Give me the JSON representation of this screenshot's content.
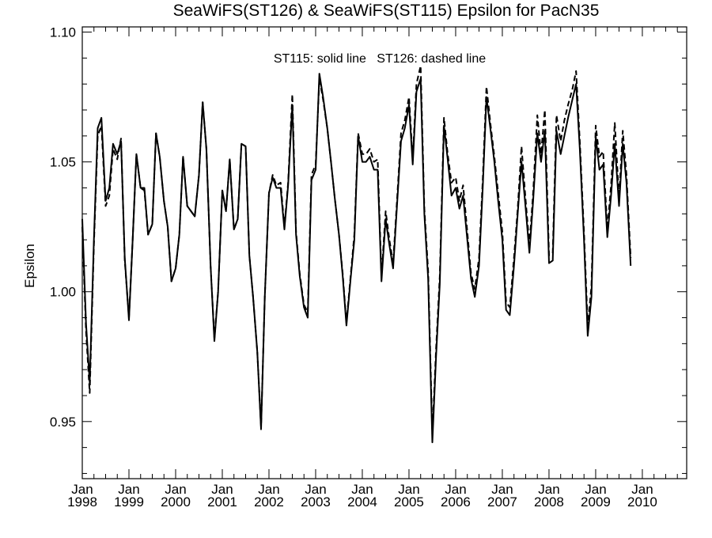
{
  "chart_data": {
    "type": "line",
    "title": "SeaWiFS(ST126) & SeaWiFS(ST115)  Epsilon for PacN35",
    "ylabel": "Epsilon",
    "xlabel": "",
    "legend_text": "ST115: solid line   ST126: dashed line",
    "ylim": [
      0.928,
      1.102
    ],
    "xlim": [
      1998.0,
      2010.95
    ],
    "yticks": [
      {
        "value": 0.95,
        "label": "0.95"
      },
      {
        "value": 1.0,
        "label": "1.00"
      },
      {
        "value": 1.05,
        "label": "1.05"
      },
      {
        "value": 1.1,
        "label": "1.10"
      }
    ],
    "xticks": [
      {
        "value": 1998,
        "month": "Jan",
        "year": "1998"
      },
      {
        "value": 1999,
        "month": "Jan",
        "year": "1999"
      },
      {
        "value": 2000,
        "month": "Jan",
        "year": "2000"
      },
      {
        "value": 2001,
        "month": "Jan",
        "year": "2001"
      },
      {
        "value": 2002,
        "month": "Jan",
        "year": "2002"
      },
      {
        "value": 2003,
        "month": "Jan",
        "year": "2003"
      },
      {
        "value": 2004,
        "month": "Jan",
        "year": "2004"
      },
      {
        "value": 2005,
        "month": "Jan",
        "year": "2005"
      },
      {
        "value": 2006,
        "month": "Jan",
        "year": "2006"
      },
      {
        "value": 2007,
        "month": "Jan",
        "year": "2007"
      },
      {
        "value": 2008,
        "month": "Jan",
        "year": "2008"
      },
      {
        "value": 2009,
        "month": "Jan",
        "year": "2009"
      },
      {
        "value": 2010,
        "month": "Jan",
        "year": "2010"
      }
    ],
    "series": [
      {
        "style": "solid",
        "points": [
          [
            1998.0,
            1.028
          ],
          [
            1998.08,
            0.988
          ],
          [
            1998.16,
            0.965
          ],
          [
            1998.25,
            1.02
          ],
          [
            1998.33,
            1.063
          ],
          [
            1998.41,
            1.067
          ],
          [
            1998.5,
            1.035
          ],
          [
            1998.58,
            1.04
          ],
          [
            1998.66,
            1.057
          ],
          [
            1998.75,
            1.053
          ],
          [
            1998.83,
            1.058
          ],
          [
            1998.91,
            1.013
          ],
          [
            1999.0,
            0.989
          ],
          [
            1999.08,
            1.02
          ],
          [
            1999.16,
            1.053
          ],
          [
            1999.25,
            1.04
          ],
          [
            1999.33,
            1.04
          ],
          [
            1999.41,
            1.022
          ],
          [
            1999.5,
            1.026
          ],
          [
            1999.58,
            1.061
          ],
          [
            1999.66,
            1.052
          ],
          [
            1999.75,
            1.035
          ],
          [
            1999.83,
            1.025
          ],
          [
            1999.91,
            1.004
          ],
          [
            2000.0,
            1.009
          ],
          [
            2000.08,
            1.022
          ],
          [
            2000.16,
            1.052
          ],
          [
            2000.25,
            1.033
          ],
          [
            2000.33,
            1.031
          ],
          [
            2000.41,
            1.029
          ],
          [
            2000.5,
            1.045
          ],
          [
            2000.58,
            1.073
          ],
          [
            2000.66,
            1.055
          ],
          [
            2000.75,
            1.01
          ],
          [
            2000.83,
            0.981
          ],
          [
            2000.91,
            1.0
          ],
          [
            2001.0,
            1.039
          ],
          [
            2001.08,
            1.031
          ],
          [
            2001.16,
            1.051
          ],
          [
            2001.25,
            1.024
          ],
          [
            2001.33,
            1.028
          ],
          [
            2001.41,
            1.057
          ],
          [
            2001.5,
            1.056
          ],
          [
            2001.58,
            1.014
          ],
          [
            2001.66,
            0.998
          ],
          [
            2001.75,
            0.977
          ],
          [
            2001.83,
            0.947
          ],
          [
            2001.91,
            0.998
          ],
          [
            2002.0,
            1.038
          ],
          [
            2002.08,
            1.044
          ],
          [
            2002.16,
            1.04
          ],
          [
            2002.25,
            1.04
          ],
          [
            2002.33,
            1.024
          ],
          [
            2002.41,
            1.041
          ],
          [
            2002.5,
            1.072
          ],
          [
            2002.58,
            1.022
          ],
          [
            2002.66,
            1.006
          ],
          [
            2002.75,
            0.994
          ],
          [
            2002.83,
            0.99
          ],
          [
            2002.91,
            1.043
          ],
          [
            2003.0,
            1.047
          ],
          [
            2003.08,
            1.084
          ],
          [
            2003.16,
            1.075
          ],
          [
            2003.25,
            1.063
          ],
          [
            2003.33,
            1.05
          ],
          [
            2003.41,
            1.036
          ],
          [
            2003.5,
            1.022
          ],
          [
            2003.58,
            1.006
          ],
          [
            2003.66,
            0.987
          ],
          [
            2003.75,
            1.005
          ],
          [
            2003.83,
            1.02
          ],
          [
            2003.91,
            1.06
          ],
          [
            2004.0,
            1.05
          ],
          [
            2004.08,
            1.05
          ],
          [
            2004.16,
            1.052
          ],
          [
            2004.25,
            1.047
          ],
          [
            2004.33,
            1.047
          ],
          [
            2004.41,
            1.004
          ],
          [
            2004.5,
            1.028
          ],
          [
            2004.58,
            1.018
          ],
          [
            2004.66,
            1.009
          ],
          [
            2004.75,
            1.035
          ],
          [
            2004.83,
            1.058
          ],
          [
            2004.91,
            1.063
          ],
          [
            2005.0,
            1.072
          ],
          [
            2005.08,
            1.049
          ],
          [
            2005.16,
            1.077
          ],
          [
            2005.25,
            1.082
          ],
          [
            2005.33,
            1.03
          ],
          [
            2005.41,
            1.005
          ],
          [
            2005.5,
            0.942
          ],
          [
            2005.58,
            0.975
          ],
          [
            2005.66,
            1.003
          ],
          [
            2005.75,
            1.064
          ],
          [
            2005.83,
            1.051
          ],
          [
            2005.91,
            1.037
          ],
          [
            2006.0,
            1.04
          ],
          [
            2006.08,
            1.032
          ],
          [
            2006.16,
            1.037
          ],
          [
            2006.25,
            1.02
          ],
          [
            2006.33,
            1.005
          ],
          [
            2006.41,
            0.998
          ],
          [
            2006.5,
            1.01
          ],
          [
            2006.58,
            1.04
          ],
          [
            2006.66,
            1.075
          ],
          [
            2006.75,
            1.062
          ],
          [
            2006.83,
            1.05
          ],
          [
            2006.91,
            1.035
          ],
          [
            2007.0,
            1.02
          ],
          [
            2007.08,
            0.993
          ],
          [
            2007.16,
            0.991
          ],
          [
            2007.25,
            1.01
          ],
          [
            2007.33,
            1.03
          ],
          [
            2007.41,
            1.05
          ],
          [
            2007.5,
            1.032
          ],
          [
            2007.58,
            1.015
          ],
          [
            2007.66,
            1.035
          ],
          [
            2007.75,
            1.061
          ],
          [
            2007.83,
            1.05
          ],
          [
            2007.91,
            1.062
          ],
          [
            2008.0,
            1.011
          ],
          [
            2008.08,
            1.012
          ],
          [
            2008.16,
            1.062
          ],
          [
            2008.25,
            1.053
          ],
          [
            2008.33,
            1.06
          ],
          [
            2008.41,
            1.067
          ],
          [
            2008.5,
            1.074
          ],
          [
            2008.58,
            1.08
          ],
          [
            2008.66,
            1.055
          ],
          [
            2008.75,
            1.02
          ],
          [
            2008.83,
            0.983
          ],
          [
            2008.91,
            0.998
          ],
          [
            2009.0,
            1.06
          ],
          [
            2009.08,
            1.047
          ],
          [
            2009.16,
            1.049
          ],
          [
            2009.25,
            1.021
          ],
          [
            2009.33,
            1.037
          ],
          [
            2009.41,
            1.057
          ],
          [
            2009.5,
            1.033
          ],
          [
            2009.58,
            1.057
          ],
          [
            2009.66,
            1.042
          ],
          [
            2009.75,
            1.01
          ]
        ]
      },
      {
        "style": "dashed",
        "points": [
          [
            1998.0,
            1.025
          ],
          [
            1998.08,
            0.985
          ],
          [
            1998.16,
            0.961
          ],
          [
            1998.25,
            1.018
          ],
          [
            1998.33,
            1.06
          ],
          [
            1998.41,
            1.064
          ],
          [
            1998.5,
            1.033
          ],
          [
            1998.58,
            1.037
          ],
          [
            1998.66,
            1.055
          ],
          [
            1998.75,
            1.051
          ],
          [
            1998.83,
            1.059
          ],
          [
            1998.91,
            1.012
          ],
          [
            1999.0,
            0.99
          ],
          [
            1999.08,
            1.02
          ],
          [
            1999.16,
            1.053
          ],
          [
            1999.25,
            1.04
          ],
          [
            1999.33,
            1.039
          ],
          [
            1999.41,
            1.022
          ],
          [
            1999.5,
            1.026
          ],
          [
            1999.58,
            1.061
          ],
          [
            1999.66,
            1.052
          ],
          [
            1999.75,
            1.035
          ],
          [
            1999.83,
            1.025
          ],
          [
            1999.91,
            1.004
          ],
          [
            2000.0,
            1.009
          ],
          [
            2000.08,
            1.022
          ],
          [
            2000.16,
            1.052
          ],
          [
            2000.25,
            1.033
          ],
          [
            2000.33,
            1.031
          ],
          [
            2000.41,
            1.029
          ],
          [
            2000.5,
            1.045
          ],
          [
            2000.58,
            1.073
          ],
          [
            2000.66,
            1.055
          ],
          [
            2000.75,
            1.01
          ],
          [
            2000.83,
            0.982
          ],
          [
            2000.91,
            1.0
          ],
          [
            2001.0,
            1.039
          ],
          [
            2001.08,
            1.031
          ],
          [
            2001.16,
            1.051
          ],
          [
            2001.25,
            1.024
          ],
          [
            2001.33,
            1.028
          ],
          [
            2001.41,
            1.057
          ],
          [
            2001.5,
            1.056
          ],
          [
            2001.58,
            1.014
          ],
          [
            2001.66,
            0.998
          ],
          [
            2001.75,
            0.977
          ],
          [
            2001.83,
            0.948
          ],
          [
            2001.91,
            0.998
          ],
          [
            2002.0,
            1.038
          ],
          [
            2002.08,
            1.045
          ],
          [
            2002.16,
            1.041
          ],
          [
            2002.25,
            1.042
          ],
          [
            2002.33,
            1.025
          ],
          [
            2002.41,
            1.042
          ],
          [
            2002.5,
            1.076
          ],
          [
            2002.58,
            1.023
          ],
          [
            2002.66,
            1.007
          ],
          [
            2002.75,
            0.995
          ],
          [
            2002.83,
            0.992
          ],
          [
            2002.91,
            1.045
          ],
          [
            2003.0,
            1.049
          ],
          [
            2003.08,
            1.082
          ],
          [
            2003.16,
            1.074
          ],
          [
            2003.25,
            1.063
          ],
          [
            2003.33,
            1.05
          ],
          [
            2003.41,
            1.036
          ],
          [
            2003.5,
            1.022
          ],
          [
            2003.58,
            1.007
          ],
          [
            2003.66,
            0.988
          ],
          [
            2003.75,
            1.006
          ],
          [
            2003.83,
            1.022
          ],
          [
            2003.91,
            1.061
          ],
          [
            2004.0,
            1.053
          ],
          [
            2004.08,
            1.053
          ],
          [
            2004.16,
            1.055
          ],
          [
            2004.25,
            1.05
          ],
          [
            2004.33,
            1.051
          ],
          [
            2004.41,
            1.006
          ],
          [
            2004.5,
            1.031
          ],
          [
            2004.58,
            1.02
          ],
          [
            2004.66,
            1.011
          ],
          [
            2004.75,
            1.037
          ],
          [
            2004.83,
            1.061
          ],
          [
            2004.91,
            1.066
          ],
          [
            2005.0,
            1.075
          ],
          [
            2005.08,
            1.051
          ],
          [
            2005.16,
            1.08
          ],
          [
            2005.25,
            1.087
          ],
          [
            2005.33,
            1.032
          ],
          [
            2005.41,
            1.008
          ],
          [
            2005.5,
            0.945
          ],
          [
            2005.58,
            0.978
          ],
          [
            2005.66,
            1.006
          ],
          [
            2005.75,
            1.067
          ],
          [
            2005.83,
            1.053
          ],
          [
            2005.91,
            1.042
          ],
          [
            2006.0,
            1.044
          ],
          [
            2006.08,
            1.035
          ],
          [
            2006.16,
            1.041
          ],
          [
            2006.25,
            1.023
          ],
          [
            2006.33,
            1.007
          ],
          [
            2006.41,
            1.001
          ],
          [
            2006.5,
            1.013
          ],
          [
            2006.58,
            1.043
          ],
          [
            2006.66,
            1.079
          ],
          [
            2006.75,
            1.064
          ],
          [
            2006.83,
            1.052
          ],
          [
            2006.91,
            1.038
          ],
          [
            2007.0,
            1.023
          ],
          [
            2007.08,
            0.996
          ],
          [
            2007.16,
            0.994
          ],
          [
            2007.25,
            1.013
          ],
          [
            2007.33,
            1.032
          ],
          [
            2007.41,
            1.056
          ],
          [
            2007.5,
            1.035
          ],
          [
            2007.58,
            1.018
          ],
          [
            2007.66,
            1.038
          ],
          [
            2007.75,
            1.068
          ],
          [
            2007.83,
            1.053
          ],
          [
            2007.91,
            1.07
          ],
          [
            2008.0,
            1.014
          ],
          [
            2008.08,
            1.015
          ],
          [
            2008.16,
            1.068
          ],
          [
            2008.25,
            1.058
          ],
          [
            2008.33,
            1.066
          ],
          [
            2008.41,
            1.072
          ],
          [
            2008.5,
            1.078
          ],
          [
            2008.58,
            1.085
          ],
          [
            2008.66,
            1.058
          ],
          [
            2008.75,
            1.023
          ],
          [
            2008.83,
            0.987
          ],
          [
            2008.91,
            1.002
          ],
          [
            2009.0,
            1.064
          ],
          [
            2009.08,
            1.052
          ],
          [
            2009.16,
            1.054
          ],
          [
            2009.25,
            1.024
          ],
          [
            2009.33,
            1.041
          ],
          [
            2009.41,
            1.065
          ],
          [
            2009.5,
            1.036
          ],
          [
            2009.58,
            1.062
          ],
          [
            2009.66,
            1.045
          ],
          [
            2009.75,
            1.013
          ]
        ]
      }
    ]
  }
}
